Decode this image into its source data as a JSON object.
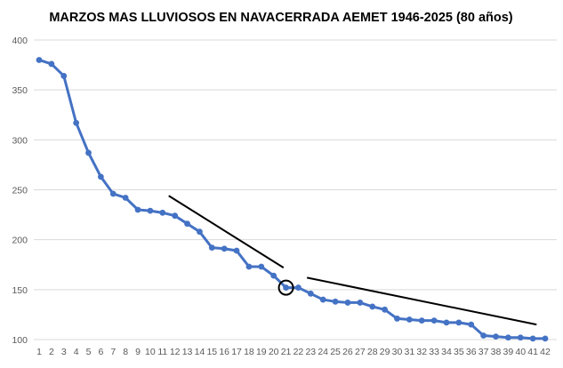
{
  "chart_data": {
    "type": "line",
    "title": "MARZOS MAS LLUVIOSOS EN NAVACERRADA AEMET 1946-2025 (80 años)",
    "xlabel": "",
    "ylabel": "",
    "ylim": [
      100,
      400
    ],
    "yticks": [
      100,
      150,
      200,
      250,
      300,
      350,
      400
    ],
    "grid": true,
    "legend": "none",
    "categories": [
      "1",
      "2",
      "3",
      "4",
      "5",
      "6",
      "7",
      "8",
      "9",
      "10",
      "11",
      "12",
      "13",
      "14",
      "15",
      "16",
      "17",
      "18",
      "19",
      "20",
      "21",
      "22",
      "23",
      "24",
      "25",
      "26",
      "27",
      "28",
      "29",
      "30",
      "31",
      "32",
      "33",
      "34",
      "35",
      "36",
      "37",
      "38",
      "39",
      "40",
      "41",
      "42"
    ],
    "series": [
      {
        "color": "#4472C4",
        "values": [
          380,
          376,
          364,
          317,
          287,
          263,
          246,
          242,
          230,
          229,
          227,
          224,
          216,
          208,
          192,
          191,
          189,
          173,
          173,
          164,
          152,
          152,
          146,
          140,
          138,
          137,
          137,
          133,
          130,
          121,
          120,
          119,
          119,
          117,
          117,
          115,
          104,
          103,
          102,
          102,
          101,
          101
        ]
      }
    ],
    "annotations": [
      {
        "type": "line",
        "from": [
          11.5,
          244
        ],
        "to": [
          20.8,
          172
        ],
        "color": "#000000"
      },
      {
        "type": "line",
        "from": [
          22.7,
          162
        ],
        "to": [
          41.3,
          115
        ],
        "color": "#000000"
      },
      {
        "type": "circle",
        "at": [
          21,
          152
        ],
        "color": "#000000"
      }
    ]
  }
}
